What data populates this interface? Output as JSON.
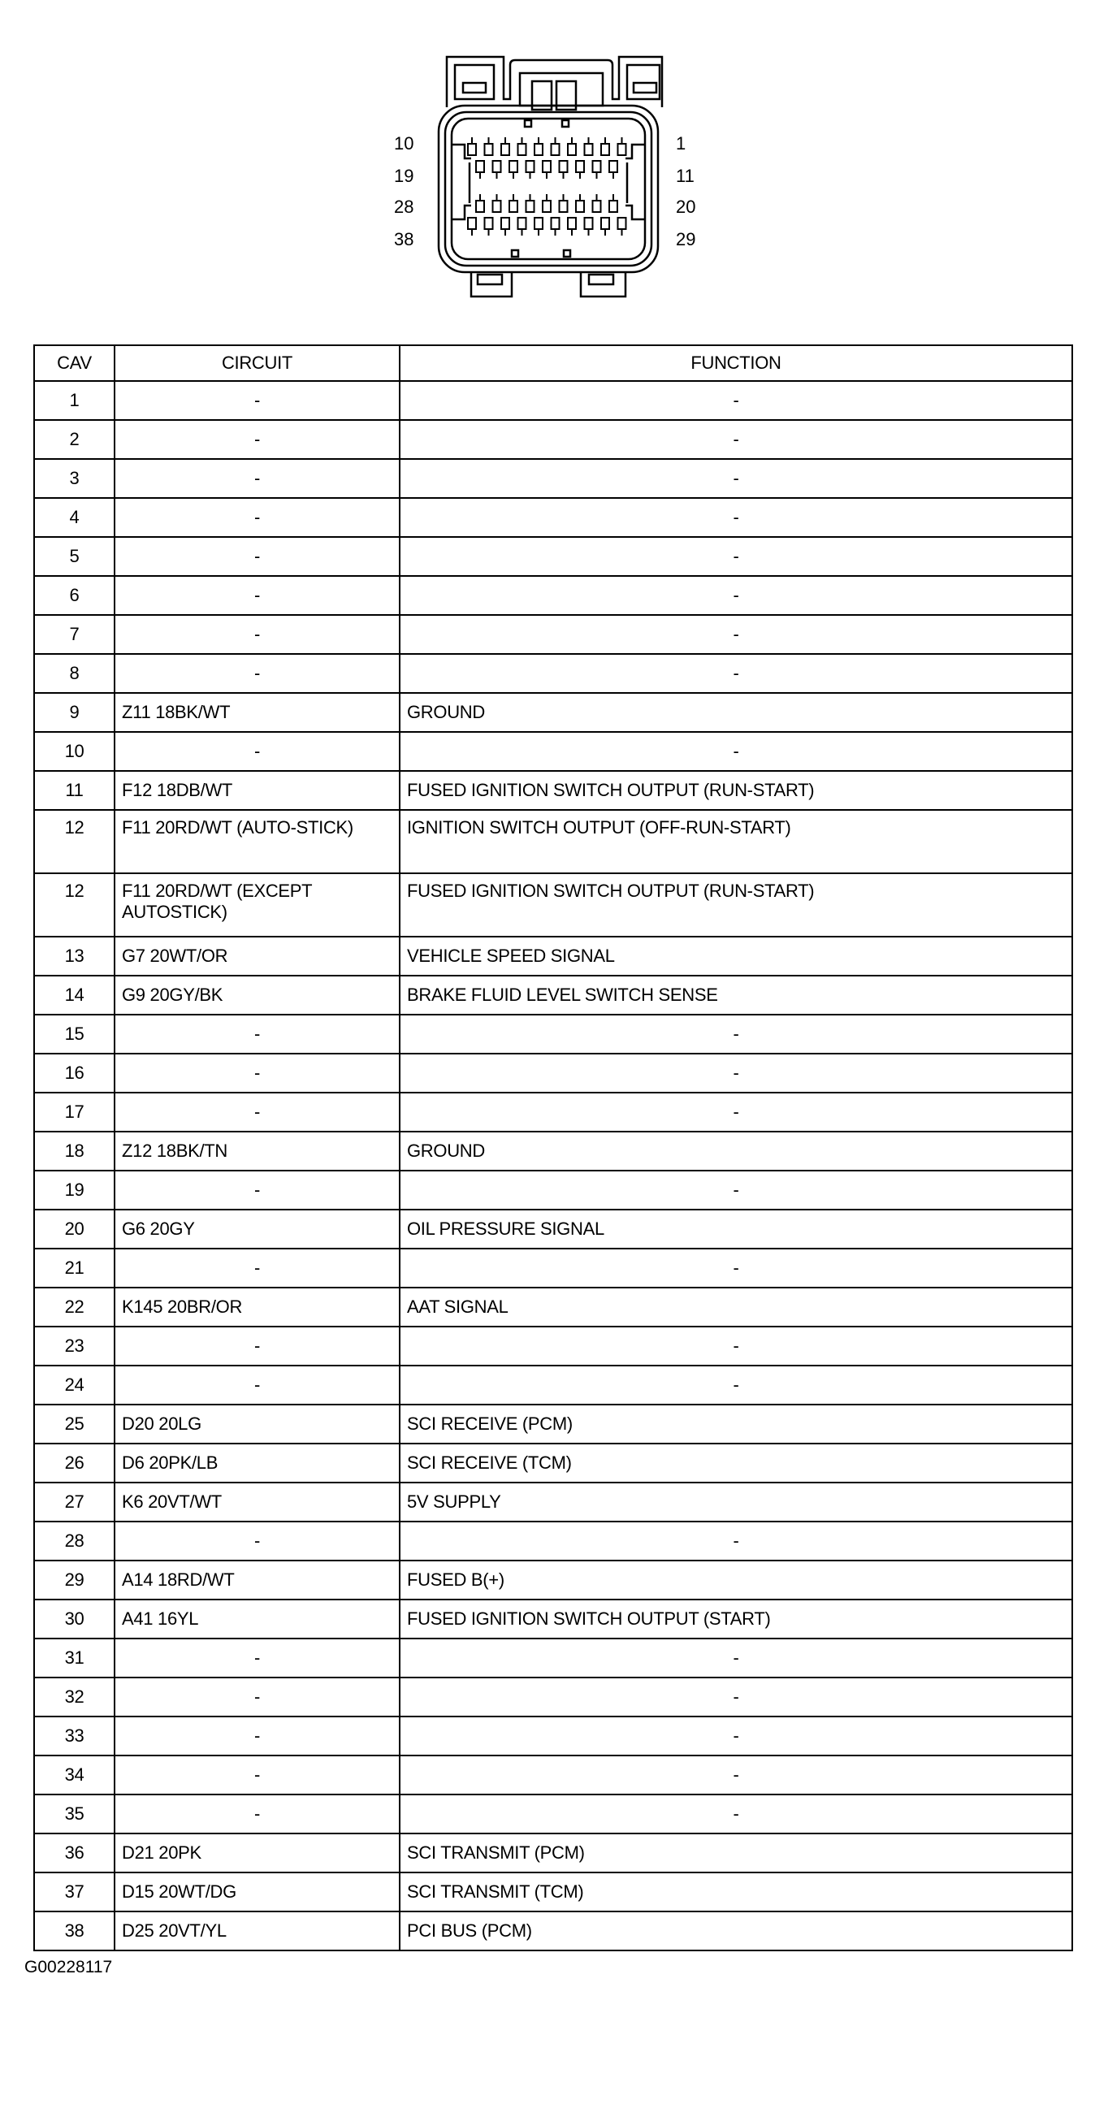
{
  "connector": {
    "pin_labels_left": [
      "10",
      "19",
      "28",
      "38"
    ],
    "pin_labels_right": [
      "1",
      "11",
      "20",
      "29"
    ]
  },
  "table": {
    "headers": {
      "cav": "CAV",
      "circuit": "CIRCUIT",
      "function": "FUNCTION"
    },
    "rows": [
      {
        "cav": "1",
        "circuit": "-",
        "function": "-"
      },
      {
        "cav": "2",
        "circuit": "-",
        "function": "-"
      },
      {
        "cav": "3",
        "circuit": "-",
        "function": "-"
      },
      {
        "cav": "4",
        "circuit": "-",
        "function": "-"
      },
      {
        "cav": "5",
        "circuit": "-",
        "function": "-"
      },
      {
        "cav": "6",
        "circuit": "-",
        "function": "-"
      },
      {
        "cav": "7",
        "circuit": "-",
        "function": "-"
      },
      {
        "cav": "8",
        "circuit": "-",
        "function": "-"
      },
      {
        "cav": "9",
        "circuit": "Z11 18BK/WT",
        "function": "GROUND"
      },
      {
        "cav": "10",
        "circuit": "-",
        "function": "-"
      },
      {
        "cav": "11",
        "circuit": "F12 18DB/WT",
        "function": "FUSED IGNITION SWITCH OUTPUT (RUN-START)"
      },
      {
        "cav": "12",
        "circuit": "F11 20RD/WT (AUTO-STICK)",
        "function": "IGNITION SWITCH OUTPUT (OFF-RUN-START)"
      },
      {
        "cav": "12",
        "circuit": "F11 20RD/WT (EXCEPT AUTOSTICK)",
        "function": "FUSED IGNITION SWITCH OUTPUT (RUN-START)"
      },
      {
        "cav": "13",
        "circuit": "G7 20WT/OR",
        "function": "VEHICLE SPEED SIGNAL"
      },
      {
        "cav": "14",
        "circuit": "G9 20GY/BK",
        "function": "BRAKE FLUID LEVEL SWITCH SENSE"
      },
      {
        "cav": "15",
        "circuit": "-",
        "function": "-"
      },
      {
        "cav": "16",
        "circuit": "-",
        "function": "-"
      },
      {
        "cav": "17",
        "circuit": "-",
        "function": "-"
      },
      {
        "cav": "18",
        "circuit": "Z12 18BK/TN",
        "function": "GROUND"
      },
      {
        "cav": "19",
        "circuit": "-",
        "function": "-"
      },
      {
        "cav": "20",
        "circuit": "G6 20GY",
        "function": "OIL PRESSURE SIGNAL"
      },
      {
        "cav": "21",
        "circuit": "-",
        "function": "-"
      },
      {
        "cav": "22",
        "circuit": "K145 20BR/OR",
        "function": "AAT SIGNAL"
      },
      {
        "cav": "23",
        "circuit": "-",
        "function": "-"
      },
      {
        "cav": "24",
        "circuit": "-",
        "function": "-"
      },
      {
        "cav": "25",
        "circuit": "D20 20LG",
        "function": "SCI RECEIVE (PCM)"
      },
      {
        "cav": "26",
        "circuit": "D6 20PK/LB",
        "function": "SCI RECEIVE (TCM)"
      },
      {
        "cav": "27",
        "circuit": "K6 20VT/WT",
        "function": "5V SUPPLY"
      },
      {
        "cav": "28",
        "circuit": "-",
        "function": "-"
      },
      {
        "cav": "29",
        "circuit": "A14 18RD/WT",
        "function": "FUSED B(+)"
      },
      {
        "cav": "30",
        "circuit": "A41 16YL",
        "function": "FUSED IGNITION SWITCH OUTPUT (START)"
      },
      {
        "cav": "31",
        "circuit": "-",
        "function": "-"
      },
      {
        "cav": "32",
        "circuit": "-",
        "function": "-"
      },
      {
        "cav": "33",
        "circuit": "-",
        "function": "-"
      },
      {
        "cav": "34",
        "circuit": "-",
        "function": "-"
      },
      {
        "cav": "35",
        "circuit": "-",
        "function": "-"
      },
      {
        "cav": "36",
        "circuit": "D21 20PK",
        "function": "SCI TRANSMIT (PCM)"
      },
      {
        "cav": "37",
        "circuit": "D15 20WT/DG",
        "function": "SCI TRANSMIT (TCM)"
      },
      {
        "cav": "38",
        "circuit": "D25 20VT/YL",
        "function": "PCI BUS (PCM)"
      }
    ]
  },
  "figure_id": "G00228117"
}
